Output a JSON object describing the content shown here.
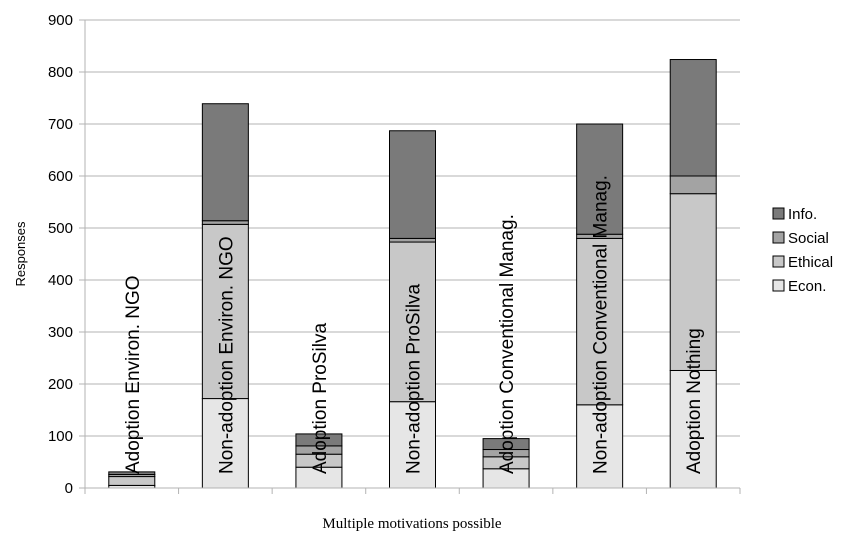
{
  "chart_data": {
    "type": "bar",
    "stacked": true,
    "title": "",
    "xlabel": "Multiple motivations possible",
    "ylabel": "Responses",
    "ylim": [
      0,
      900
    ],
    "yticks": [
      0,
      100,
      200,
      300,
      400,
      500,
      600,
      700,
      800,
      900
    ],
    "grid": true,
    "legend_position": "right",
    "categories": [
      "Adoption Environ. NGO",
      "Non-adoption Environ. NGO",
      "Adoption ProSilva",
      "Non-adoption ProSilva",
      "Adoption Conventional Manag.",
      "Non-adoption Conventional Manag.",
      "Adoption Nothing"
    ],
    "series": [
      {
        "name": "Econ.",
        "color": "#e6e6e6",
        "values": [
          5,
          172,
          40,
          166,
          37,
          160,
          226
        ]
      },
      {
        "name": "Ethical",
        "color": "#c8c8c8",
        "values": [
          17,
          335,
          25,
          307,
          23,
          320,
          340
        ]
      },
      {
        "name": "Social",
        "color": "#a3a3a3",
        "values": [
          4,
          7,
          16,
          7,
          14,
          8,
          34
        ]
      },
      {
        "name": "Info.",
        "color": "#7a7a7a",
        "values": [
          5,
          225,
          23,
          207,
          21,
          212,
          224
        ]
      }
    ]
  }
}
